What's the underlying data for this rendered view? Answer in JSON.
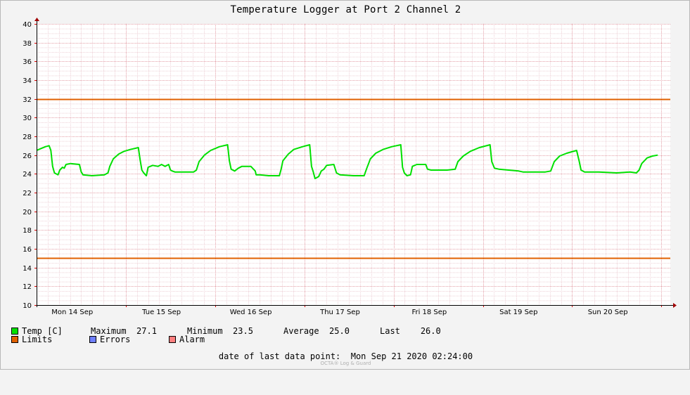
{
  "chart_data": {
    "type": "line",
    "title": "Temperature Logger at Port 2 Channel 2",
    "ylim": [
      10,
      40
    ],
    "yticks": [
      "10",
      "12",
      "14",
      "16",
      "18",
      "20",
      "22",
      "24",
      "26",
      "28",
      "30",
      "32",
      "34",
      "36",
      "38",
      "40"
    ],
    "xticks": [
      "Mon 14 Sep",
      "Tue 15 Sep",
      "Wed 16 Sep",
      "Thu 17 Sep",
      "Fri 18 Sep",
      "Sat 19 Sep",
      "Sun 20 Sep"
    ],
    "x_domain_days": [
      0,
      7.1
    ],
    "grid": true,
    "limits": {
      "upper": 32,
      "lower": 15,
      "color": "#e06000"
    },
    "series": [
      {
        "name": "Temp [C]",
        "color": "#00e000",
        "points": [
          [
            0.0,
            26.5
          ],
          [
            0.05,
            26.7
          ],
          [
            0.1,
            26.9
          ],
          [
            0.14,
            27.0
          ],
          [
            0.16,
            26.5
          ],
          [
            0.18,
            24.8
          ],
          [
            0.2,
            24.1
          ],
          [
            0.24,
            23.9
          ],
          [
            0.26,
            24.4
          ],
          [
            0.29,
            24.7
          ],
          [
            0.31,
            24.6
          ],
          [
            0.33,
            25.0
          ],
          [
            0.38,
            25.1
          ],
          [
            0.48,
            25.0
          ],
          [
            0.5,
            24.2
          ],
          [
            0.52,
            23.9
          ],
          [
            0.62,
            23.8
          ],
          [
            0.76,
            23.9
          ],
          [
            0.8,
            24.1
          ],
          [
            0.82,
            24.8
          ],
          [
            0.86,
            25.6
          ],
          [
            0.92,
            26.1
          ],
          [
            0.98,
            26.4
          ],
          [
            1.05,
            26.6
          ],
          [
            1.14,
            26.8
          ],
          [
            1.16,
            25.5
          ],
          [
            1.18,
            24.4
          ],
          [
            1.2,
            24.1
          ],
          [
            1.23,
            23.8
          ],
          [
            1.25,
            24.7
          ],
          [
            1.3,
            24.9
          ],
          [
            1.36,
            24.8
          ],
          [
            1.4,
            25.0
          ],
          [
            1.44,
            24.8
          ],
          [
            1.48,
            25.0
          ],
          [
            1.5,
            24.4
          ],
          [
            1.52,
            24.3
          ],
          [
            1.55,
            24.2
          ],
          [
            1.65,
            24.2
          ],
          [
            1.76,
            24.2
          ],
          [
            1.79,
            24.4
          ],
          [
            1.82,
            25.3
          ],
          [
            1.88,
            26.0
          ],
          [
            1.95,
            26.5
          ],
          [
            2.05,
            26.9
          ],
          [
            2.14,
            27.1
          ],
          [
            2.16,
            25.4
          ],
          [
            2.18,
            24.5
          ],
          [
            2.22,
            24.3
          ],
          [
            2.26,
            24.6
          ],
          [
            2.3,
            24.8
          ],
          [
            2.4,
            24.8
          ],
          [
            2.45,
            24.3
          ],
          [
            2.46,
            23.9
          ],
          [
            2.5,
            23.9
          ],
          [
            2.6,
            23.8
          ],
          [
            2.72,
            23.8
          ],
          [
            2.74,
            24.5
          ],
          [
            2.76,
            25.4
          ],
          [
            2.82,
            26.1
          ],
          [
            2.88,
            26.6
          ],
          [
            2.98,
            26.9
          ],
          [
            3.06,
            27.1
          ],
          [
            3.08,
            24.8
          ],
          [
            3.1,
            24.2
          ],
          [
            3.12,
            23.5
          ],
          [
            3.16,
            23.7
          ],
          [
            3.19,
            24.3
          ],
          [
            3.22,
            24.5
          ],
          [
            3.25,
            24.9
          ],
          [
            3.33,
            25.0
          ],
          [
            3.36,
            24.1
          ],
          [
            3.4,
            23.9
          ],
          [
            3.55,
            23.8
          ],
          [
            3.67,
            23.8
          ],
          [
            3.7,
            24.6
          ],
          [
            3.74,
            25.6
          ],
          [
            3.8,
            26.2
          ],
          [
            3.88,
            26.6
          ],
          [
            3.98,
            26.9
          ],
          [
            4.08,
            27.1
          ],
          [
            4.1,
            24.7
          ],
          [
            4.12,
            24.1
          ],
          [
            4.15,
            23.8
          ],
          [
            4.19,
            23.9
          ],
          [
            4.21,
            24.8
          ],
          [
            4.26,
            25.0
          ],
          [
            4.36,
            25.0
          ],
          [
            4.38,
            24.5
          ],
          [
            4.42,
            24.4
          ],
          [
            4.6,
            24.4
          ],
          [
            4.69,
            24.5
          ],
          [
            4.72,
            25.3
          ],
          [
            4.78,
            25.9
          ],
          [
            4.86,
            26.4
          ],
          [
            4.96,
            26.8
          ],
          [
            5.08,
            27.1
          ],
          [
            5.1,
            25.3
          ],
          [
            5.13,
            24.6
          ],
          [
            5.18,
            24.5
          ],
          [
            5.4,
            24.3
          ],
          [
            5.45,
            24.2
          ],
          [
            5.7,
            24.2
          ],
          [
            5.76,
            24.3
          ],
          [
            5.8,
            25.3
          ],
          [
            5.86,
            25.9
          ],
          [
            5.94,
            26.2
          ],
          [
            6.05,
            26.5
          ],
          [
            6.08,
            25.3
          ],
          [
            6.1,
            24.4
          ],
          [
            6.14,
            24.2
          ],
          [
            6.3,
            24.2
          ],
          [
            6.5,
            24.1
          ],
          [
            6.65,
            24.2
          ],
          [
            6.72,
            24.1
          ],
          [
            6.75,
            24.4
          ],
          [
            6.78,
            25.1
          ],
          [
            6.84,
            25.7
          ],
          [
            6.9,
            25.9
          ],
          [
            6.96,
            26.0
          ]
        ]
      }
    ]
  },
  "legend": {
    "temp": {
      "label": "Temp [C]",
      "color": "#00e000"
    },
    "max_label": "Maximum",
    "max_value": "27.1",
    "min_label": "Minimum",
    "min_value": "23.5",
    "avg_label": "Average",
    "avg_value": "25.0",
    "last_label": "Last",
    "last_value": "26.0",
    "limits": {
      "label": "Limits",
      "color": "#e06000"
    },
    "errors": {
      "label": "Errors",
      "color": "#6f7fff"
    },
    "alarm": {
      "label": "Alarm",
      "color": "#ff7f7f"
    }
  },
  "footer": {
    "last_point_label": "date of last data point:",
    "last_point_value": "Mon Sep 21 2020 02:24:00",
    "watermark": "OCTA® Log & Guard"
  }
}
